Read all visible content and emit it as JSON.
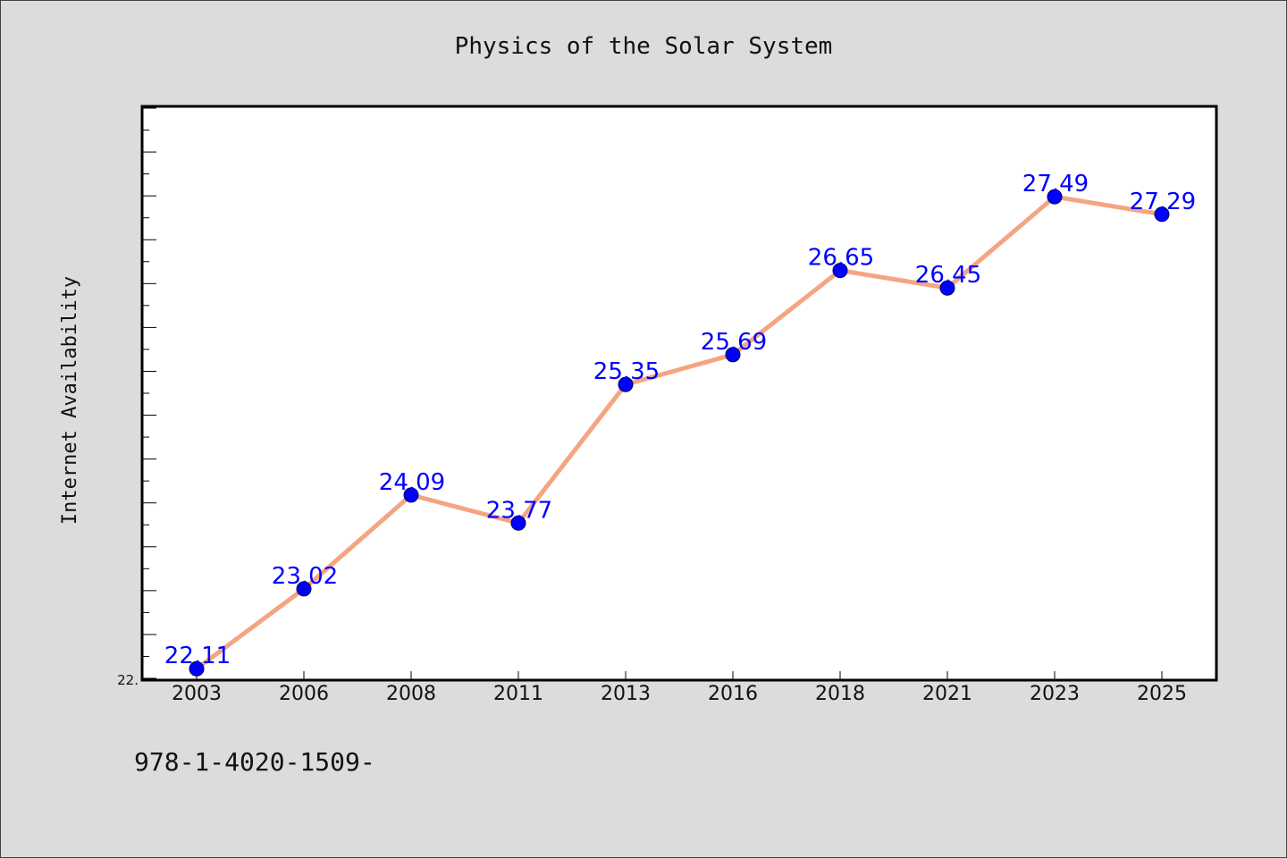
{
  "colors": {
    "background": "#dcdcdc",
    "plot_background": "#ffffff",
    "line": "#f4a582",
    "marker": "#0000ff",
    "data_label": "#0000ff"
  },
  "footnote": "978-1-4020-1509-",
  "chart_data": {
    "type": "line",
    "title": "Physics of the Solar System",
    "xlabel": "",
    "ylabel": "Internet Availability",
    "categories": [
      "2003",
      "2006",
      "2008",
      "2011",
      "2013",
      "2016",
      "2018",
      "2021",
      "2023",
      "2025"
    ],
    "series": [
      {
        "values": [
          22.11,
          23.02,
          24.09,
          23.77,
          25.35,
          25.69,
          26.65,
          26.45,
          27.49,
          27.29
        ]
      }
    ],
    "data_labels": [
      "22.11",
      "23.02",
      "24.09",
      "23.77",
      "25.35",
      "25.69",
      "26.65",
      "26.45",
      "27.49",
      "27.29"
    ],
    "y_tick_labels": [
      "22."
    ],
    "ylim": [
      22.0,
      28.5
    ],
    "grid": false,
    "legend": "none"
  }
}
